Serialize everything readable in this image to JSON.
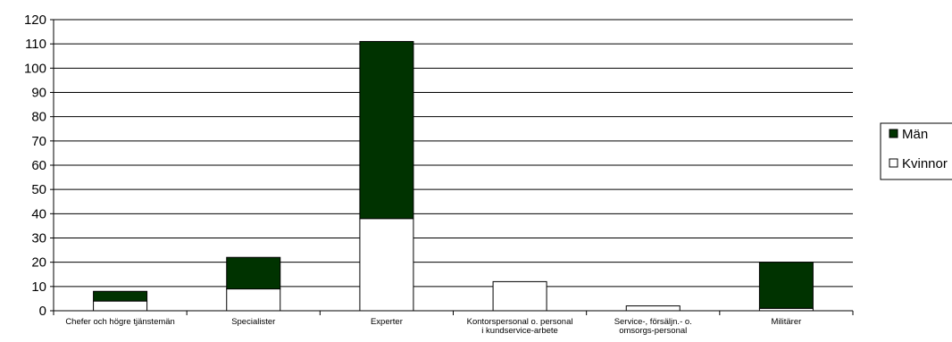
{
  "chart_data": {
    "type": "bar",
    "stacked": true,
    "categories": [
      [
        "Chefer och högre tjänstemän"
      ],
      [
        "Specialister"
      ],
      [
        "Experter"
      ],
      [
        "Kontorspersonal o. personal",
        "i kundservice-arbete"
      ],
      [
        "Service-, försäljn.- o.",
        "omsorgs-personal"
      ],
      [
        "Militärer"
      ]
    ],
    "series": [
      {
        "name": "Kvinnor",
        "color": "#ffffff",
        "values": [
          4,
          9,
          38,
          12,
          2,
          1
        ]
      },
      {
        "name": "Män",
        "color": "#003300",
        "values": [
          4,
          13,
          73,
          0,
          0,
          19
        ]
      }
    ],
    "legend_order": [
      "Män",
      "Kvinnor"
    ],
    "ylim": [
      0,
      120
    ],
    "yticks": [
      0,
      10,
      20,
      30,
      40,
      50,
      60,
      70,
      80,
      90,
      100,
      110,
      120
    ],
    "grid": true,
    "legend_position": "right"
  }
}
